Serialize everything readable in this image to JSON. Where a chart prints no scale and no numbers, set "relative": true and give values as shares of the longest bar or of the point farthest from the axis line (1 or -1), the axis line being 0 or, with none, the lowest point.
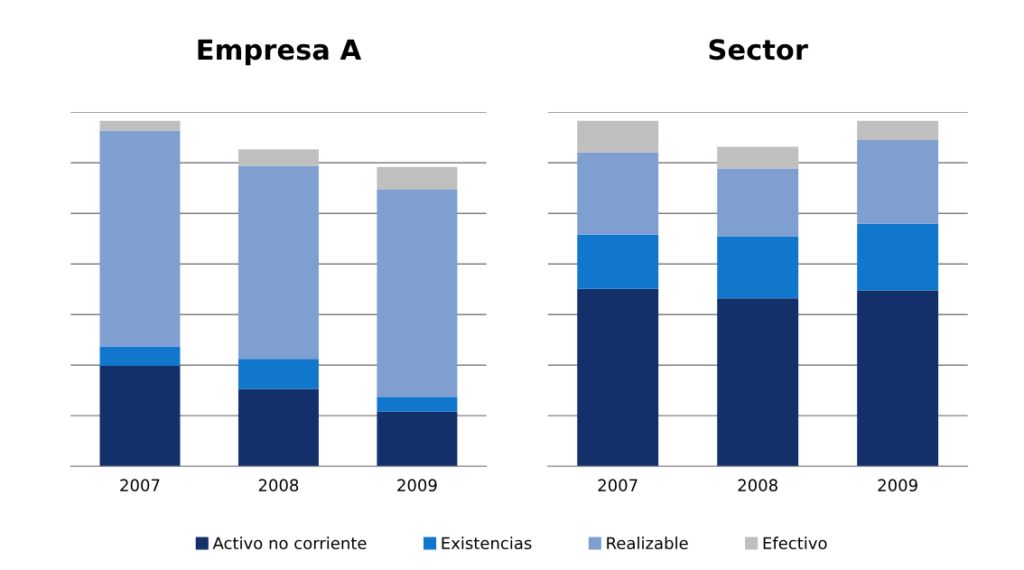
{
  "chart_data": [
    {
      "type": "bar",
      "title": "Empresa A",
      "stacked": true,
      "relative": true,
      "grid": "y",
      "legend": "bottom",
      "categories": [
        "2007",
        "2008",
        "2009"
      ],
      "series": [
        {
          "name": "Activo no corriente",
          "color": "#13306b",
          "values": [
            0.291,
            0.224,
            0.158
          ]
        },
        {
          "name": "Existencias",
          "color": "#1177cc",
          "values": [
            0.056,
            0.087,
            0.043
          ]
        },
        {
          "name": "Realizable",
          "color": "#7f9fd0",
          "values": [
            0.625,
            0.559,
            0.6
          ]
        },
        {
          "name": "Efectivo",
          "color": "#bfbfbf",
          "values": [
            0.028,
            0.048,
            0.066
          ]
        }
      ]
    },
    {
      "type": "bar",
      "title": "Sector",
      "stacked": true,
      "relative": true,
      "grid": "y",
      "categories": [
        "2007",
        "2008",
        "2009"
      ],
      "series": [
        {
          "color": "#13306b",
          "values": [
            0.514,
            0.486,
            0.509
          ]
        },
        {
          "color": "#1177cc",
          "values": [
            0.157,
            0.18,
            0.193
          ]
        },
        {
          "color": "#7f9fd0",
          "values": [
            0.238,
            0.196,
            0.243
          ]
        },
        {
          "color": "#bfbfbf",
          "values": [
            0.091,
            0.063,
            0.055
          ]
        }
      ]
    }
  ]
}
